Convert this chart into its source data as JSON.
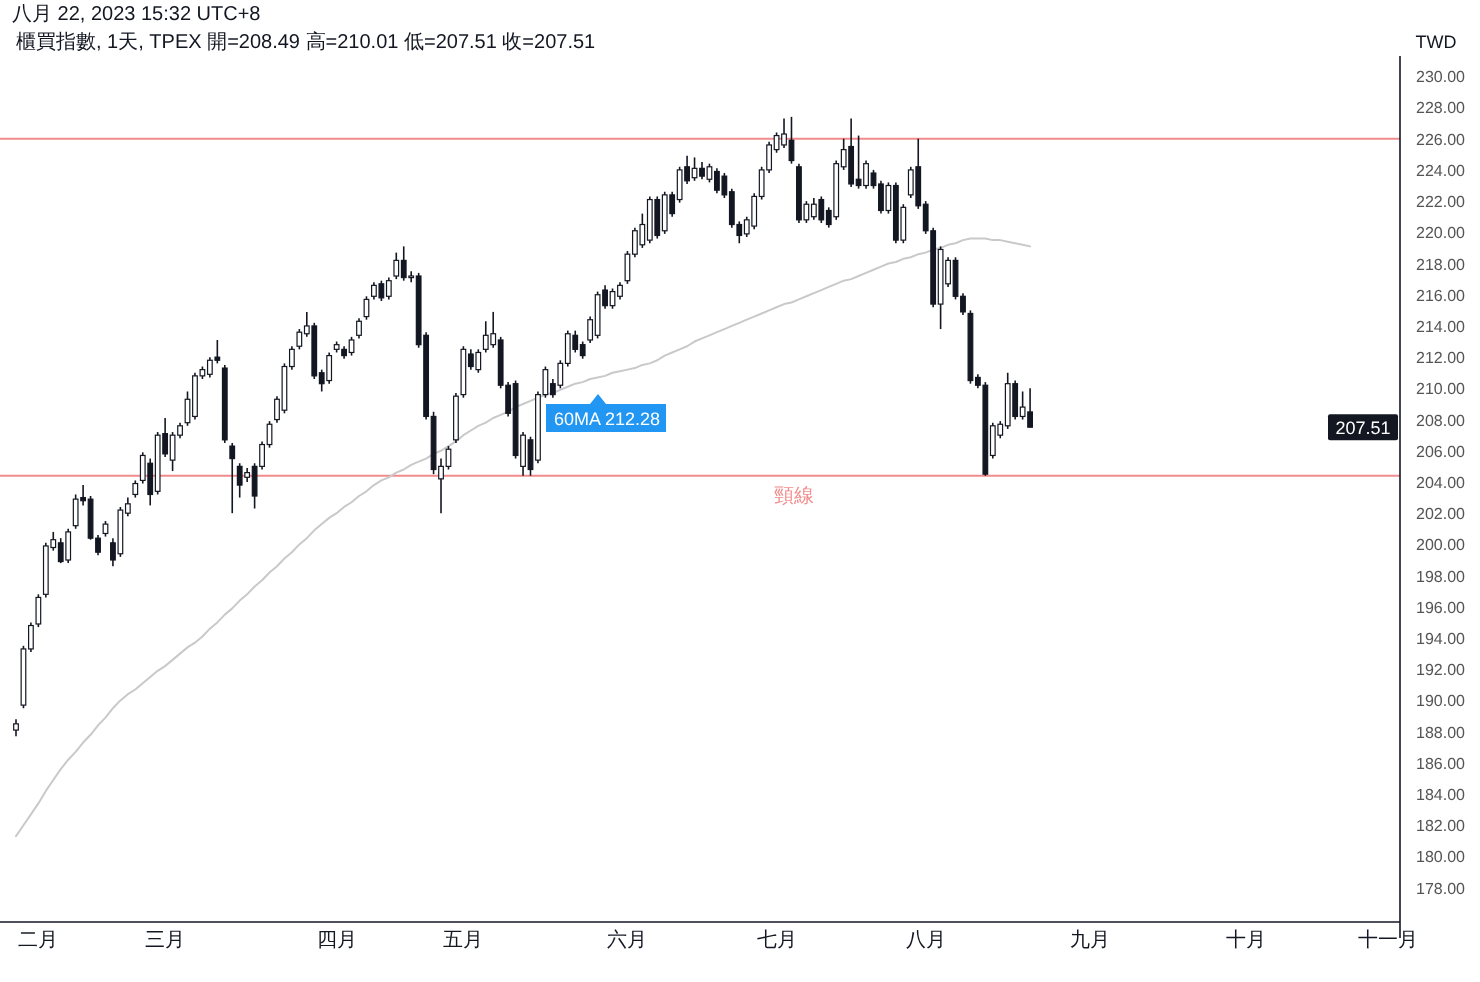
{
  "chart_data": {
    "type": "candlestick",
    "title": "櫃買指數, 1天, TPEX 開=208.49 高=210.01 低=207.51 收=207.51",
    "subtitle": "八月 22, 2023 15:32 UTC+8",
    "ylabel": "TWD",
    "color": "#131722",
    "categories": [
      null,
      null,
      null,
      "二月",
      null,
      null,
      null,
      null,
      null,
      null,
      null,
      null,
      null,
      null,
      null,
      null,
      null,
      null,
      null,
      null,
      "三月",
      null,
      null,
      null,
      null,
      null,
      null,
      null,
      null,
      null,
      null,
      null,
      null,
      null,
      null,
      null,
      null,
      null,
      null,
      null,
      null,
      null,
      null,
      "四月",
      null,
      null,
      null,
      null,
      null,
      null,
      null,
      null,
      null,
      null,
      null,
      null,
      null,
      null,
      null,
      null,
      "五月",
      null,
      null,
      null,
      null,
      null,
      null,
      null,
      null,
      null,
      null,
      null,
      null,
      null,
      null,
      null,
      null,
      null,
      null,
      null,
      null,
      null,
      "六月",
      null,
      null,
      null,
      null,
      null,
      null,
      null,
      null,
      null,
      null,
      null,
      null,
      null,
      null,
      null,
      null,
      null,
      null,
      null,
      "七月",
      null,
      null,
      null,
      null,
      null,
      null,
      null,
      null,
      null,
      null,
      null,
      null,
      null,
      null,
      null,
      null,
      null,
      null,
      null,
      "八月",
      null,
      null,
      null,
      null,
      null,
      null,
      null,
      null,
      null,
      null,
      null,
      null,
      null,
      null,
      null,
      null,
      null,
      null,
      null,
      null,
      null,
      "九月",
      null,
      null,
      null,
      null,
      null,
      null,
      null,
      null,
      null,
      null,
      null,
      null,
      null,
      null,
      null,
      null,
      null,
      null,
      null,
      null,
      "十月",
      null,
      null,
      null,
      null,
      null,
      null,
      null,
      null,
      null,
      null,
      null,
      null,
      null,
      null,
      null,
      null,
      null,
      null,
      "十一月"
    ],
    "ohlc": [
      [
        188.1,
        188.8,
        187.7,
        188.5
      ],
      [
        189.7,
        193.5,
        189.5,
        193.3
      ],
      [
        193.3,
        195.0,
        193.1,
        194.8
      ],
      [
        194.9,
        196.8,
        194.7,
        196.6
      ],
      [
        196.8,
        200.1,
        196.6,
        199.9
      ],
      [
        199.8,
        200.8,
        199.6,
        200.3
      ],
      [
        200.1,
        200.4,
        198.8,
        198.9
      ],
      [
        199.0,
        201.0,
        198.8,
        200.8
      ],
      [
        201.2,
        203.2,
        201.0,
        202.9
      ],
      [
        203.0,
        203.8,
        202.5,
        202.8
      ],
      [
        202.9,
        203.1,
        200.3,
        200.4
      ],
      [
        200.4,
        200.6,
        199.3,
        199.5
      ],
      [
        200.7,
        201.5,
        200.5,
        201.3
      ],
      [
        200.1,
        200.4,
        198.6,
        199.0
      ],
      [
        199.4,
        202.4,
        199.2,
        202.2
      ],
      [
        202.0,
        203.0,
        201.8,
        202.6
      ],
      [
        203.2,
        204.1,
        203.0,
        203.9
      ],
      [
        204.1,
        205.9,
        203.9,
        205.7
      ],
      [
        205.2,
        205.5,
        202.5,
        203.2
      ],
      [
        203.4,
        207.2,
        203.2,
        207.0
      ],
      [
        207.1,
        208.1,
        205.6,
        205.8
      ],
      [
        205.4,
        207.2,
        204.7,
        207.0
      ],
      [
        207.0,
        207.8,
        206.8,
        207.6
      ],
      [
        207.8,
        209.8,
        207.6,
        209.3
      ],
      [
        208.2,
        211.0,
        208.0,
        210.8
      ],
      [
        210.8,
        211.4,
        210.6,
        211.2
      ],
      [
        210.9,
        212.0,
        210.7,
        211.8
      ],
      [
        212.0,
        213.1,
        211.6,
        211.8
      ],
      [
        211.3,
        211.5,
        206.5,
        206.7
      ],
      [
        206.3,
        206.5,
        202.0,
        205.5
      ],
      [
        205.0,
        205.2,
        203.0,
        203.8
      ],
      [
        204.3,
        204.9,
        204.0,
        204.6
      ],
      [
        205.0,
        205.2,
        202.3,
        203.1
      ],
      [
        205.0,
        206.6,
        204.8,
        206.4
      ],
      [
        206.4,
        207.9,
        206.2,
        207.7
      ],
      [
        208.0,
        209.5,
        207.8,
        209.3
      ],
      [
        208.6,
        211.6,
        208.4,
        211.4
      ],
      [
        211.4,
        212.7,
        211.2,
        212.5
      ],
      [
        212.7,
        213.8,
        212.5,
        213.6
      ],
      [
        213.5,
        214.9,
        213.3,
        214.0
      ],
      [
        214.0,
        214.2,
        210.6,
        210.8
      ],
      [
        211.0,
        211.2,
        209.8,
        210.3
      ],
      [
        210.5,
        212.3,
        210.3,
        212.1
      ],
      [
        212.5,
        213.0,
        212.3,
        212.8
      ],
      [
        212.5,
        212.7,
        211.9,
        212.1
      ],
      [
        212.3,
        213.3,
        212.1,
        213.1
      ],
      [
        213.4,
        214.5,
        213.2,
        214.3
      ],
      [
        214.6,
        215.9,
        214.4,
        215.7
      ],
      [
        215.9,
        216.8,
        215.7,
        216.6
      ],
      [
        216.7,
        216.9,
        215.6,
        215.8
      ],
      [
        215.9,
        217.1,
        215.7,
        216.9
      ],
      [
        217.2,
        218.7,
        217.0,
        218.2
      ],
      [
        218.2,
        219.1,
        216.9,
        217.1
      ],
      [
        217.1,
        217.5,
        216.8,
        217.2
      ],
      [
        217.2,
        217.4,
        212.6,
        212.8
      ],
      [
        213.4,
        213.6,
        208.0,
        208.2
      ],
      [
        208.2,
        208.5,
        204.5,
        204.8
      ],
      [
        204.2,
        205.5,
        202.0,
        205.0
      ],
      [
        205.0,
        206.3,
        204.8,
        206.1
      ],
      [
        206.7,
        209.7,
        206.5,
        209.5
      ],
      [
        209.6,
        212.7,
        209.4,
        212.5
      ],
      [
        212.2,
        212.5,
        211.2,
        211.4
      ],
      [
        211.2,
        212.5,
        211.0,
        212.3
      ],
      [
        212.5,
        214.3,
        212.3,
        213.4
      ],
      [
        212.8,
        214.9,
        212.6,
        213.5
      ],
      [
        213.1,
        213.3,
        210.0,
        210.2
      ],
      [
        210.2,
        210.4,
        208.2,
        208.4
      ],
      [
        210.3,
        210.5,
        205.5,
        205.7
      ],
      [
        205.0,
        207.2,
        204.4,
        207.0
      ],
      [
        206.7,
        206.9,
        204.4,
        204.8
      ],
      [
        205.4,
        209.8,
        205.2,
        209.6
      ],
      [
        209.6,
        211.4,
        209.4,
        211.2
      ],
      [
        210.3,
        210.6,
        209.4,
        209.6
      ],
      [
        210.2,
        211.8,
        210.0,
        211.6
      ],
      [
        211.6,
        213.7,
        211.4,
        213.5
      ],
      [
        213.4,
        213.7,
        212.3,
        212.5
      ],
      [
        212.8,
        213.0,
        211.9,
        212.1
      ],
      [
        213.1,
        214.6,
        212.9,
        214.4
      ],
      [
        213.4,
        216.2,
        213.2,
        216.0
      ],
      [
        216.3,
        216.6,
        215.1,
        215.3
      ],
      [
        215.3,
        216.4,
        215.1,
        216.2
      ],
      [
        215.9,
        216.8,
        215.7,
        216.6
      ],
      [
        216.9,
        218.8,
        216.7,
        218.6
      ],
      [
        218.6,
        220.3,
        218.4,
        220.1
      ],
      [
        219.2,
        221.2,
        219.0,
        220.5
      ],
      [
        219.5,
        222.3,
        219.3,
        222.1
      ],
      [
        222.1,
        222.3,
        219.6,
        219.8
      ],
      [
        220.1,
        222.6,
        219.9,
        222.4
      ],
      [
        222.4,
        222.6,
        221.0,
        221.2
      ],
      [
        222.1,
        224.2,
        221.9,
        224.0
      ],
      [
        224.2,
        224.9,
        223.1,
        223.3
      ],
      [
        223.5,
        224.8,
        223.3,
        224.1
      ],
      [
        224.1,
        224.5,
        223.4,
        223.6
      ],
      [
        223.4,
        224.4,
        223.2,
        224.2
      ],
      [
        223.9,
        224.1,
        222.5,
        222.7
      ],
      [
        223.6,
        223.8,
        222.2,
        222.4
      ],
      [
        222.6,
        222.8,
        220.3,
        220.5
      ],
      [
        220.5,
        220.7,
        219.3,
        219.8
      ],
      [
        219.9,
        221.0,
        219.7,
        220.8
      ],
      [
        220.4,
        222.5,
        220.2,
        222.3
      ],
      [
        222.3,
        224.2,
        222.1,
        224.0
      ],
      [
        224.0,
        225.8,
        223.8,
        225.6
      ],
      [
        225.3,
        226.4,
        225.1,
        226.2
      ],
      [
        225.6,
        227.3,
        225.4,
        226.3
      ],
      [
        225.9,
        227.4,
        224.4,
        224.6
      ],
      [
        224.2,
        224.4,
        220.6,
        220.8
      ],
      [
        220.8,
        222.0,
        220.6,
        221.8
      ],
      [
        221.0,
        222.2,
        220.8,
        221.8
      ],
      [
        222.1,
        222.3,
        220.6,
        220.8
      ],
      [
        221.4,
        221.6,
        220.3,
        220.5
      ],
      [
        221.0,
        224.6,
        220.8,
        224.4
      ],
      [
        224.2,
        226.0,
        224.0,
        225.3
      ],
      [
        225.5,
        227.3,
        222.9,
        223.1
      ],
      [
        223.4,
        226.2,
        222.8,
        223.0
      ],
      [
        223.0,
        224.6,
        222.8,
        224.4
      ],
      [
        223.8,
        224.0,
        222.8,
        223.0
      ],
      [
        223.1,
        223.3,
        221.2,
        221.4
      ],
      [
        221.4,
        223.2,
        221.2,
        223.0
      ],
      [
        223.0,
        223.2,
        219.3,
        219.5
      ],
      [
        219.5,
        221.8,
        219.3,
        221.6
      ],
      [
        222.4,
        224.2,
        222.2,
        224.0
      ],
      [
        224.2,
        226.0,
        221.5,
        221.7
      ],
      [
        221.8,
        222.0,
        219.9,
        220.1
      ],
      [
        220.1,
        220.3,
        215.2,
        215.4
      ],
      [
        215.4,
        219.1,
        213.8,
        218.9
      ],
      [
        216.7,
        218.4,
        216.5,
        218.2
      ],
      [
        218.2,
        218.4,
        215.7,
        215.9
      ],
      [
        215.9,
        216.1,
        214.7,
        214.9
      ],
      [
        214.8,
        215.0,
        210.3,
        210.5
      ],
      [
        210.7,
        210.9,
        210.0,
        210.2
      ],
      [
        210.2,
        210.4,
        204.4,
        204.5
      ],
      [
        205.7,
        207.8,
        205.5,
        207.6
      ],
      [
        207.0,
        207.9,
        206.8,
        207.7
      ],
      [
        207.6,
        211.0,
        207.4,
        210.3
      ],
      [
        210.3,
        210.5,
        208.0,
        208.2
      ],
      [
        208.2,
        209.8,
        208.0,
        208.8
      ],
      [
        208.49,
        210.01,
        207.51,
        207.51
      ],
      null,
      null,
      null,
      null,
      null,
      null,
      null,
      null,
      null,
      null,
      null,
      null,
      null,
      null,
      null,
      null,
      null,
      null,
      null,
      null,
      null,
      null,
      null,
      null,
      null,
      null,
      null,
      null,
      null,
      null,
      null,
      null,
      null,
      null,
      null,
      null,
      null,
      null,
      null,
      null,
      null,
      null,
      null,
      null,
      null,
      null,
      null,
      null
    ],
    "series": [
      {
        "type": "line",
        "color": "#c9c9c9",
        "values": [
          181.3,
          182.0,
          182.7,
          183.4,
          184.2,
          184.9,
          185.6,
          186.2,
          186.7,
          187.3,
          187.8,
          188.4,
          188.9,
          189.5,
          190.0,
          190.4,
          190.7,
          191.1,
          191.5,
          191.9,
          192.2,
          192.6,
          193.0,
          193.4,
          193.7,
          194.1,
          194.6,
          195.0,
          195.5,
          195.9,
          196.4,
          196.8,
          197.3,
          197.7,
          198.2,
          198.6,
          199.1,
          199.5,
          200.0,
          200.4,
          200.9,
          201.3,
          201.7,
          202.0,
          202.4,
          202.7,
          203.1,
          203.4,
          203.8,
          204.1,
          204.3,
          204.6,
          204.8,
          205.1,
          205.3,
          205.5,
          205.8,
          206.0,
          206.3,
          206.6,
          207.0,
          207.3,
          207.6,
          207.8,
          208.1,
          208.3,
          208.5,
          208.8,
          209.0,
          209.2,
          209.4,
          209.6,
          209.7,
          209.9,
          210.1,
          210.3,
          210.4,
          210.6,
          210.7,
          210.8,
          211.0,
          211.1,
          211.2,
          211.3,
          211.5,
          211.6,
          211.8,
          212.1,
          212.3,
          212.5,
          212.7,
          213.0,
          213.2,
          213.4,
          213.6,
          213.8,
          214.0,
          214.2,
          214.4,
          214.6,
          214.8,
          215.0,
          215.2,
          215.4,
          215.5,
          215.7,
          215.9,
          216.1,
          216.3,
          216.5,
          216.7,
          216.9,
          217.0,
          217.2,
          217.4,
          217.6,
          217.8,
          218.0,
          218.1,
          218.3,
          218.4,
          218.6,
          218.7,
          218.9,
          219.0,
          219.2,
          219.3,
          219.5,
          219.6,
          219.6,
          219.6,
          219.5,
          219.5,
          219.4,
          219.3,
          219.2,
          219.1,
          null,
          null,
          null,
          null,
          null,
          null,
          null,
          null,
          null,
          null,
          null,
          null,
          null,
          null,
          null,
          null,
          null,
          null,
          null,
          null,
          null,
          null,
          null,
          null,
          null,
          null,
          null,
          null,
          null,
          null,
          null,
          null,
          null,
          null,
          null,
          null,
          null,
          null,
          null,
          null,
          null,
          null,
          null,
          null,
          null,
          null,
          null,
          null
        ]
      }
    ],
    "ylim": [
      175.8,
      231.3
    ],
    "yticks": [
      {
        "value": 178,
        "label": "178.00"
      },
      {
        "value": 180,
        "label": "180.00"
      },
      {
        "value": 182,
        "label": "182.00"
      },
      {
        "value": 184,
        "label": "184.00"
      },
      {
        "value": 186,
        "label": "186.00"
      },
      {
        "value": 188,
        "label": "188.00"
      },
      {
        "value": 190,
        "label": "190.00"
      },
      {
        "value": 192,
        "label": "192.00"
      },
      {
        "value": 194,
        "label": "194.00"
      },
      {
        "value": 196,
        "label": "196.00"
      },
      {
        "value": 198,
        "label": "198.00"
      },
      {
        "value": 200,
        "label": "200.00"
      },
      {
        "value": 202,
        "label": "202.00"
      },
      {
        "value": 204,
        "label": "204.00"
      },
      {
        "value": 206,
        "label": "206.00"
      },
      {
        "value": 208,
        "label": "208.00"
      },
      {
        "value": 210,
        "label": "210.00"
      },
      {
        "value": 212,
        "label": "212.00"
      },
      {
        "value": 214,
        "label": "214.00"
      },
      {
        "value": 216,
        "label": "216.00"
      },
      {
        "value": 218,
        "label": "218.00"
      },
      {
        "value": 220,
        "label": "220.00"
      },
      {
        "value": 222,
        "label": "222.00"
      },
      {
        "value": 224,
        "label": "224.00"
      },
      {
        "value": 226,
        "label": "226.00"
      },
      {
        "value": 228,
        "label": "228.00"
      },
      {
        "value": 230,
        "label": "230.00"
      }
    ],
    "ref_lines": [
      {
        "axis": "y",
        "value": 226,
        "color": "#f28b8c"
      },
      {
        "axis": "y",
        "value": 204.4,
        "label": "頸線",
        "color": "#f28b8c"
      }
    ],
    "annotations": [
      "60MA 212.28",
      {
        "text": "207.51",
        "y": 207.51
      }
    ],
    "grid": false
  }
}
